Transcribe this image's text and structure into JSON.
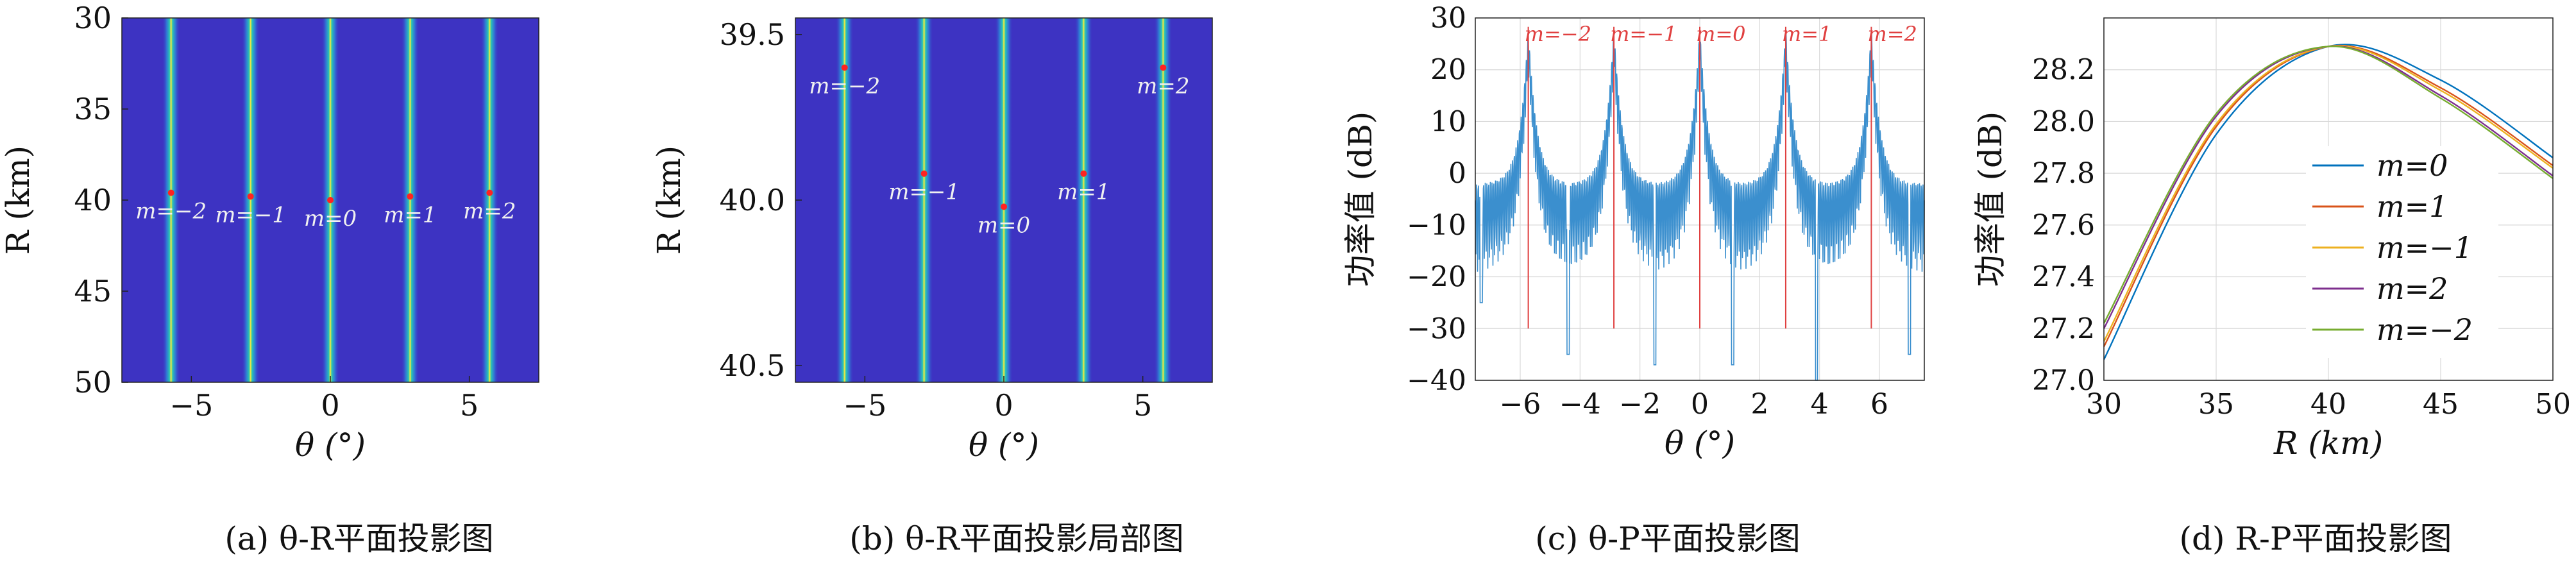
{
  "colors": {
    "heat_background": "#3d33c2",
    "stripe_edge": "#2f7fd6",
    "stripe_mid": "#29c7b4",
    "stripe_core": "#ffe93a",
    "marker": "#ff2222",
    "marker_label": "#f0f0f0",
    "power_line": "#3b8fce",
    "peak_line": "#e04040",
    "axis": "#222222",
    "grid": "#d9d9d9"
  },
  "chart_data": [
    {
      "type": "heatmap",
      "caption": "(a) θ-R平面投影图",
      "xlabel": "θ (°)",
      "ylabel": "R (km)",
      "xlim": [
        -7.5,
        7.5
      ],
      "ylim": [
        50,
        30
      ],
      "xticks": [
        -5,
        0,
        5
      ],
      "yticks": [
        30,
        35,
        40,
        45,
        50
      ],
      "stripes_theta": [
        -5.73,
        -2.87,
        0,
        2.87,
        5.73
      ],
      "markers": [
        {
          "label": "m=−2",
          "theta": -5.73,
          "R": 39.6
        },
        {
          "label": "m=−1",
          "theta": -2.87,
          "R": 39.8
        },
        {
          "label": "m=0",
          "theta": 0,
          "R": 40.0
        },
        {
          "label": "m=1",
          "theta": 2.87,
          "R": 39.8
        },
        {
          "label": "m=2",
          "theta": 5.73,
          "R": 39.6
        }
      ]
    },
    {
      "type": "heatmap",
      "caption": "(b) θ-R平面投影局部图",
      "xlabel": "θ (°)",
      "ylabel": "R (km)",
      "xlim": [
        -7.5,
        7.5
      ],
      "ylim": [
        40.55,
        39.45
      ],
      "xticks": [
        -5,
        0,
        5
      ],
      "yticks": [
        39.5,
        40.0,
        40.5
      ],
      "ytick_labels": [
        "39.5",
        "40.0",
        "40.5"
      ],
      "stripes_theta": [
        -5.73,
        -2.87,
        0,
        2.87,
        5.73
      ],
      "markers": [
        {
          "label": "m=−2",
          "theta": -5.73,
          "R": 39.6
        },
        {
          "label": "m=−1",
          "theta": -2.87,
          "R": 39.92
        },
        {
          "label": "m=0",
          "theta": 0,
          "R": 40.02
        },
        {
          "label": "m=1",
          "theta": 2.87,
          "R": 39.92
        },
        {
          "label": "m=2",
          "theta": 5.73,
          "R": 39.6
        }
      ]
    },
    {
      "type": "line",
      "caption": "(c) θ-P平面投影图",
      "xlabel": "θ (°)",
      "ylabel": "功率值 (dB)",
      "xlim": [
        -7.5,
        7.5
      ],
      "ylim": [
        -40,
        30
      ],
      "xticks": [
        -6,
        -4,
        -2,
        0,
        2,
        4,
        6
      ],
      "yticks": [
        30,
        20,
        10,
        0,
        -10,
        -20,
        -30,
        -40
      ],
      "grid": true,
      "peaks": [
        {
          "label": "m=−2",
          "theta": -5.73,
          "peak_db": 28.3
        },
        {
          "label": "m=−1",
          "theta": -2.87,
          "peak_db": 28.3
        },
        {
          "label": "m=0",
          "theta": 0,
          "peak_db": 28.3
        },
        {
          "label": "m=1",
          "theta": 2.87,
          "peak_db": 28.3
        },
        {
          "label": "m=2",
          "theta": 5.73,
          "peak_db": 28.3
        }
      ],
      "peak_line_bottom_db": -30,
      "floor_db": -2,
      "deep_nulls_db": [
        {
          "theta": -7.3,
          "db": -25
        },
        {
          "theta": -4.4,
          "db": -35
        },
        {
          "theta": -1.5,
          "db": -37
        },
        {
          "theta": 1.1,
          "db": -37
        },
        {
          "theta": 3.9,
          "db": -40
        },
        {
          "theta": 7.0,
          "db": -35
        }
      ]
    },
    {
      "type": "line",
      "caption": "(d) R-P平面投影图",
      "xlabel": "R (km)",
      "ylabel": "功率值 (dB)",
      "xlim": [
        30,
        50
      ],
      "ylim": [
        27.0,
        28.4
      ],
      "xticks": [
        30,
        35,
        40,
        45,
        50
      ],
      "yticks": [
        28.2,
        28.0,
        27.8,
        27.6,
        27.4,
        27.2,
        27.0
      ],
      "ytick_labels": [
        "28.2",
        "28.0",
        "27.8",
        "27.6",
        "27.4",
        "27.2",
        "27.0"
      ],
      "grid": true,
      "legend_position": "right",
      "series": [
        {
          "name": "m=0",
          "color": "#0072bd",
          "x": [
            30,
            35,
            40,
            45,
            50
          ],
          "y": [
            27.08,
            27.95,
            28.29,
            28.16,
            27.86
          ]
        },
        {
          "name": "m=1",
          "color": "#d95319",
          "x": [
            30,
            35,
            40,
            45,
            50
          ],
          "y": [
            27.13,
            27.98,
            28.29,
            28.13,
            27.83
          ]
        },
        {
          "name": "m=−1",
          "color": "#edb120",
          "x": [
            30,
            35,
            40,
            45,
            50
          ],
          "y": [
            27.15,
            27.99,
            28.29,
            28.12,
            27.82
          ]
        },
        {
          "name": "m=2",
          "color": "#7e2f8e",
          "x": [
            30,
            35,
            40,
            45,
            50
          ],
          "y": [
            27.2,
            28.02,
            28.29,
            28.1,
            27.79
          ]
        },
        {
          "name": "m=−2",
          "color": "#77ac30",
          "x": [
            30,
            35,
            40,
            45,
            50
          ],
          "y": [
            27.22,
            28.03,
            28.29,
            28.09,
            27.78
          ]
        }
      ]
    }
  ]
}
